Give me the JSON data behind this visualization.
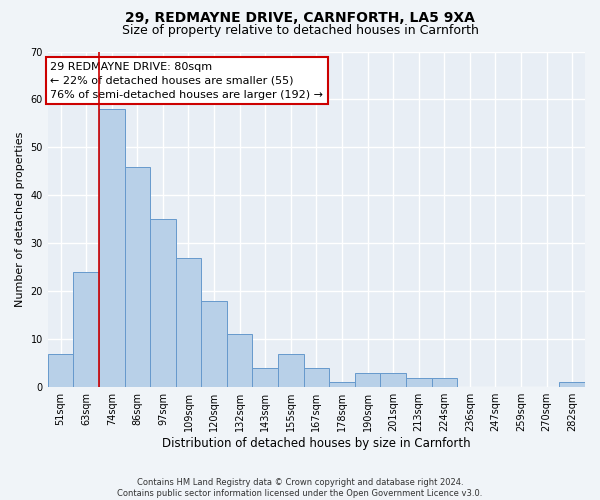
{
  "title1": "29, REDMAYNE DRIVE, CARNFORTH, LA5 9XA",
  "title2": "Size of property relative to detached houses in Carnforth",
  "xlabel": "Distribution of detached houses by size in Carnforth",
  "ylabel": "Number of detached properties",
  "categories": [
    "51sqm",
    "63sqm",
    "74sqm",
    "86sqm",
    "97sqm",
    "109sqm",
    "120sqm",
    "132sqm",
    "143sqm",
    "155sqm",
    "167sqm",
    "178sqm",
    "190sqm",
    "201sqm",
    "213sqm",
    "224sqm",
    "236sqm",
    "247sqm",
    "259sqm",
    "270sqm",
    "282sqm"
  ],
  "values": [
    7,
    24,
    58,
    46,
    35,
    27,
    18,
    11,
    4,
    7,
    4,
    1,
    3,
    3,
    2,
    2,
    0,
    0,
    0,
    0,
    1
  ],
  "bar_color": "#b8d0e8",
  "bar_edge_color": "#6699cc",
  "background_color": "#e8eef5",
  "grid_color": "#ffffff",
  "annotation_line1": "29 REDMAYNE DRIVE: 80sqm",
  "annotation_line2": "← 22% of detached houses are smaller (55)",
  "annotation_line3": "76% of semi-detached houses are larger (192) →",
  "annotation_box_color": "#ffffff",
  "annotation_box_edge_color": "#cc0000",
  "vline_x": 1.5,
  "vline_color": "#cc0000",
  "ylim": [
    0,
    70
  ],
  "yticks": [
    0,
    10,
    20,
    30,
    40,
    50,
    60,
    70
  ],
  "footer": "Contains HM Land Registry data © Crown copyright and database right 2024.\nContains public sector information licensed under the Open Government Licence v3.0.",
  "title1_fontsize": 10,
  "title2_fontsize": 9,
  "xlabel_fontsize": 8.5,
  "ylabel_fontsize": 8,
  "tick_fontsize": 7,
  "annotation_fontsize": 8,
  "footer_fontsize": 6
}
